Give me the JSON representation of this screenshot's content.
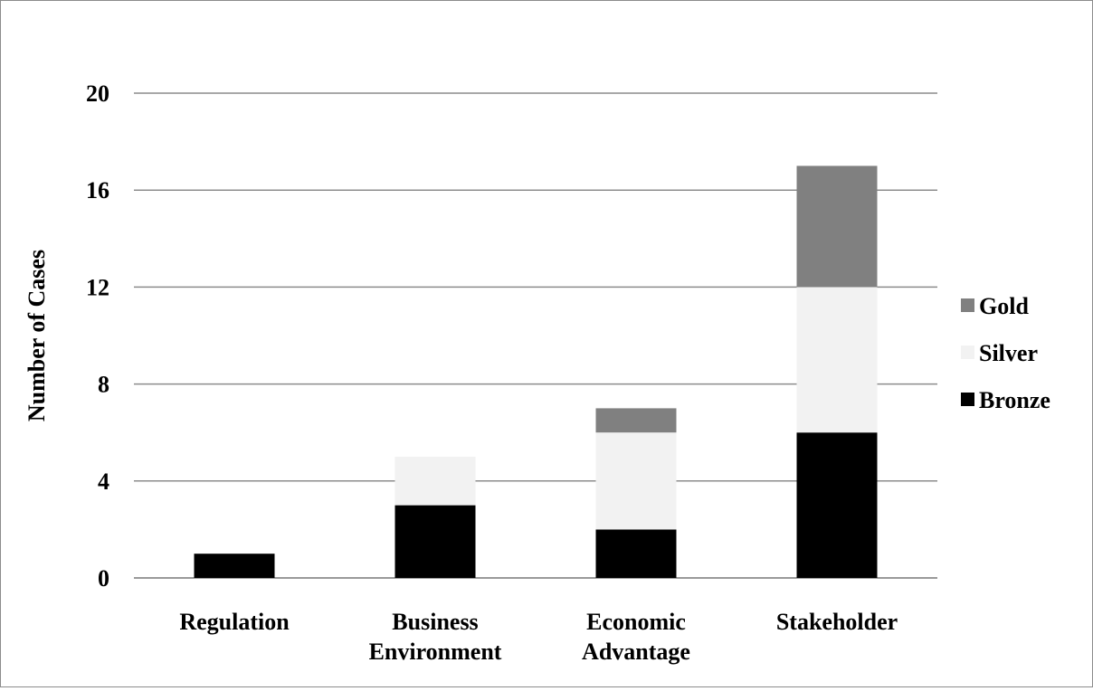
{
  "chart_data": {
    "type": "bar",
    "stacked": true,
    "title": "",
    "xlabel": "",
    "ylabel": "Number of Cases",
    "ylim": [
      0,
      20
    ],
    "yticks": [
      0,
      4,
      8,
      12,
      16,
      20
    ],
    "grid": true,
    "legend_position": "right",
    "categories": [
      [
        "Regulation"
      ],
      [
        "Business",
        "Environment"
      ],
      [
        "Economic",
        "Advantage"
      ],
      [
        "Stakeholder"
      ]
    ],
    "series": [
      {
        "name": "Bronze",
        "color": "#000000",
        "values": [
          1,
          3,
          2,
          6
        ]
      },
      {
        "name": "Silver",
        "color": "#f2f2f2",
        "values": [
          0,
          2,
          4,
          6
        ]
      },
      {
        "name": "Gold",
        "color": "#808080",
        "values": [
          0,
          0,
          1,
          5
        ]
      }
    ],
    "legend_order": [
      "Gold",
      "Silver",
      "Bronze"
    ]
  }
}
